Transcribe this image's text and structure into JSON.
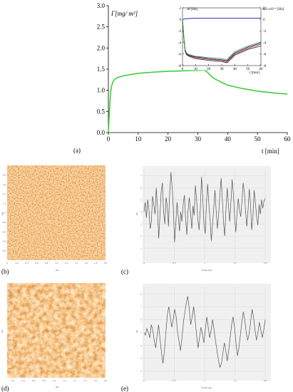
{
  "chart_data": [
    {
      "type": "line",
      "panel": "(a)",
      "ylabel": "Γ[mg/ m²]",
      "xlabel": "t [min]",
      "xlim": [
        0,
        60
      ],
      "ylim": [
        0,
        3.0
      ],
      "xticks": [
        0,
        10,
        20,
        30,
        40,
        50,
        60
      ],
      "yticks": [
        0.0,
        0.5,
        1.0,
        1.5,
        2.0,
        2.5,
        3.0
      ],
      "ytick_labels": [
        "0.0",
        "0.5",
        "1.0",
        "1.5",
        "2.0",
        "2.5",
        "3.0"
      ],
      "grid": false,
      "series": [
        {
          "color": "#33cc33",
          "x": [
            0,
            0.3,
            0.7,
            1,
            1.5,
            2,
            3,
            5,
            8,
            10,
            15,
            20,
            25,
            30,
            31,
            32,
            33,
            34,
            35,
            37,
            40,
            45,
            50,
            55,
            60
          ],
          "y": [
            0,
            0.45,
            0.9,
            1.08,
            1.2,
            1.25,
            1.3,
            1.34,
            1.38,
            1.4,
            1.43,
            1.45,
            1.46,
            1.47,
            1.47,
            1.48,
            1.44,
            1.37,
            1.3,
            1.22,
            1.12,
            1.04,
            0.98,
            0.94,
            0.91
          ]
        }
      ],
      "inset": {
        "left_label": "Δf [Hz]",
        "right_label": "ΔD x10⁻⁶ [Hz]",
        "xlabel": "t [min]",
        "xlim": [
          0,
          60
        ],
        "xticks": [
          0,
          10,
          20,
          30,
          40,
          50,
          60
        ],
        "left_ylim": [
          -8,
          2
        ],
        "left_yticks": [
          2,
          0,
          -2,
          -4,
          -6,
          -8
        ],
        "right_ylim": [
          -8,
          2
        ],
        "right_yticks": [
          2,
          0,
          -2,
          -4,
          -6,
          -8
        ],
        "series": [
          {
            "color": "#1a1aa8",
            "x": [
              0,
              2,
              5,
              10,
              20,
              30,
              35,
              40,
              50,
              60
            ],
            "y": [
              0,
              0.1,
              0.15,
              0.2,
              0.2,
              0.2,
              0.2,
              0.2,
              0.2,
              0.2
            ]
          },
          {
            "color": "#1a1aa8",
            "x": [
              0,
              1,
              2,
              3,
              5,
              10,
              20,
              30,
              34,
              36,
              40,
              50,
              60
            ],
            "y": [
              0,
              -3,
              -5.3,
              -5.9,
              -6.2,
              -6.5,
              -6.8,
              -7.0,
              -7.2,
              -6.7,
              -5.8,
              -4.8,
              -4.1
            ]
          },
          {
            "color": "#cc2222",
            "x": [
              0,
              1,
              2,
              3,
              5,
              10,
              20,
              30,
              34,
              36,
              40,
              50,
              60
            ],
            "y": [
              0,
              -3.1,
              -5.4,
              -6.0,
              -6.3,
              -6.6,
              -6.9,
              -7.1,
              -7.3,
              -6.9,
              -6.0,
              -5.0,
              -4.3
            ]
          },
          {
            "color": "#222222",
            "x": [
              0,
              1,
              2,
              3,
              5,
              10,
              20,
              30,
              34,
              36,
              40,
              50,
              60
            ],
            "y": [
              0,
              -3.2,
              -5.5,
              -6.1,
              -6.4,
              -6.8,
              -7.1,
              -7.3,
              -7.5,
              -7.1,
              -6.2,
              -5.2,
              -4.6
            ]
          },
          {
            "color": "#3aaa3a",
            "x": [
              0,
              1,
              2,
              3,
              5,
              10,
              20,
              30,
              34,
              36,
              40,
              50,
              60
            ],
            "y": [
              0,
              -2.9,
              -5.2,
              -5.8,
              -6.1,
              -6.4,
              -6.6,
              -6.8,
              -7.0,
              -6.5,
              -5.6,
              -4.6,
              -3.9
            ]
          }
        ]
      }
    },
    {
      "type": "line",
      "panel": "(c)",
      "xlabel": "Plane µm",
      "ylabel": "nm",
      "xlim": [
        0,
        2
      ],
      "ylim": [
        0,
        7.5
      ],
      "xticks": [
        0,
        0.5,
        1.0,
        1.5,
        2.0
      ],
      "xtick_labels": [
        "0",
        "0.5",
        "1",
        "1.5",
        "2.0"
      ],
      "yticks": [
        1,
        2,
        3,
        4,
        5,
        6,
        7
      ],
      "grid": true,
      "series": [
        {
          "color": "#555555",
          "y": [
            4.0,
            4.8,
            3.5,
            5.0,
            4.2,
            2.6,
            3.2,
            5.3,
            4.6,
            3.8,
            6.0,
            4.4,
            1.8,
            3.6,
            5.6,
            6.4,
            4.0,
            3.0,
            5.2,
            4.5,
            2.8,
            5.7,
            7.3,
            6.0,
            4.2,
            1.5,
            3.0,
            4.8,
            3.6,
            2.4,
            4.0,
            3.2,
            4.6,
            5.4,
            3.4,
            2.1,
            4.1,
            5.2,
            3.9,
            2.6,
            4.5,
            3.7,
            6.2,
            5.0,
            3.3,
            2.5,
            4.3,
            6.9,
            5.2,
            3.0,
            2.2,
            4.8,
            6.3,
            4.6,
            3.4,
            1.6,
            3.0,
            4.4,
            5.8,
            4.0,
            2.6,
            3.8,
            5.5,
            6.8,
            5.0,
            3.1,
            2.0,
            4.4,
            6.0,
            4.5,
            3.2,
            4.8,
            6.7,
            5.4,
            3.6,
            2.3,
            3.9,
            5.1,
            4.2,
            3.6,
            4.9,
            6.4,
            5.6,
            4.0,
            2.8,
            4.2,
            5.9,
            4.6,
            2.5,
            3.6,
            5.8,
            4.7,
            3.6,
            2.9,
            4.6,
            3.8,
            5.0,
            4.3,
            4.9,
            5.1
          ]
        }
      ]
    },
    {
      "type": "line",
      "panel": "(e)",
      "xlabel": "Plane µm",
      "ylabel": "nm",
      "xlim": [
        0,
        2
      ],
      "ylim": [
        1.5,
        8.5
      ],
      "xticks": [
        0,
        0.5,
        1.0,
        1.5,
        2.0
      ],
      "xtick_labels": [
        "0",
        "0.5",
        "1",
        "1.5",
        "2.0"
      ],
      "yticks": [
        2,
        3,
        4,
        5,
        6,
        7,
        8
      ],
      "grid": true,
      "series": [
        {
          "color": "#555555",
          "y": [
            5.0,
            4.8,
            5.3,
            5.0,
            4.6,
            5.6,
            5.2,
            4.4,
            3.8,
            4.8,
            5.6,
            4.5,
            3.4,
            2.6,
            3.6,
            5.0,
            6.4,
            7.0,
            6.2,
            5.4,
            6.0,
            6.8,
            6.2,
            5.0,
            4.3,
            3.6,
            4.6,
            5.8,
            6.6,
            7.3,
            7.8,
            6.8,
            5.6,
            6.2,
            7.0,
            6.0,
            4.8,
            3.8,
            4.6,
            5.4,
            4.9,
            4.2,
            5.2,
            6.2,
            5.4,
            4.6,
            5.2,
            6.0,
            5.2,
            4.3,
            3.6,
            2.8,
            2.3,
            2.6,
            3.4,
            4.2,
            3.6,
            2.8,
            3.6,
            4.6,
            5.6,
            6.2,
            5.4,
            4.2,
            3.2,
            3.8,
            4.8,
            5.8,
            6.6,
            6.0,
            5.0,
            4.4,
            4.9,
            5.8,
            6.8,
            6.2,
            5.2,
            4.4,
            5.0,
            5.8,
            5.2,
            4.6,
            5.2,
            6.0
          ]
        }
      ]
    }
  ],
  "afm_images": [
    {
      "panel": "(b)",
      "texture": "fine",
      "xtick_labels": [
        "0",
        "0.2",
        "0.4",
        "0.6",
        "0.8",
        "1.0",
        "1.2",
        "1.4",
        "1.6",
        "1.8",
        "2.0"
      ],
      "xlabel": "µm",
      "ylabel": "µm",
      "ytick_labels": [
        "0.2",
        "0.4",
        "0.6",
        "0.8",
        "1.0",
        "1.2",
        "1.4",
        "1.6",
        "1.8"
      ]
    },
    {
      "panel": "(d)",
      "texture": "coarse",
      "xtick_labels": [
        "0.2",
        "0.4",
        "0.6",
        "0.8",
        "1.0",
        "1.2",
        "1.4",
        "1.6",
        "1.8",
        "2.0"
      ],
      "xlabel": "µm",
      "ylabel": "µm",
      "ytick_labels": [
        "0.2",
        "0.4",
        "0.6",
        "0.8",
        "1.0",
        "1.2",
        "1.4",
        "1.6",
        "1.8"
      ]
    }
  ],
  "colors": {
    "adsorption_curve": "#33cc33",
    "profile_plot_bg": "#f0f0f0",
    "profile_grid": "#d8d8d8",
    "afm_dark": "#6b1d08",
    "afm_light": "#fde8c4"
  }
}
